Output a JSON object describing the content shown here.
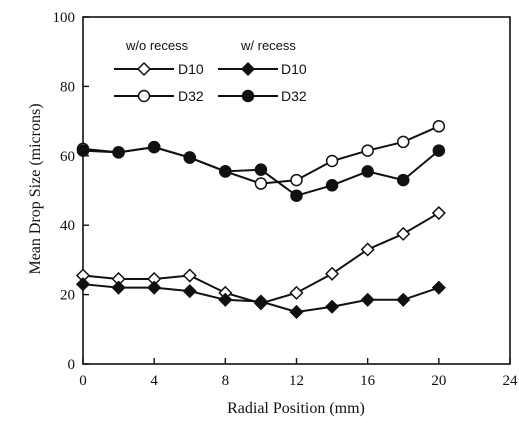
{
  "chart_data": {
    "type": "line",
    "xlabel": "Radial Position (mm)",
    "ylabel_main": "Mean Drop Size ",
    "ylabel_italic": "(microns)",
    "xlim": [
      0,
      24
    ],
    "ylim": [
      0,
      100
    ],
    "xticks": [
      0,
      4,
      8,
      12,
      16,
      20,
      24
    ],
    "yticks": [
      0,
      20,
      40,
      60,
      80,
      100
    ],
    "grid": false,
    "legend": {
      "position": "top-left",
      "group_headers": [
        "w/o recess",
        "w/ recess"
      ]
    },
    "series": [
      {
        "name": "D10",
        "group": "w/o recess",
        "marker": "diamond-open",
        "x": [
          0,
          2,
          4,
          6,
          8,
          10,
          12,
          14,
          16,
          18,
          20
        ],
        "y": [
          25.5,
          24.5,
          24.5,
          25.5,
          20.5,
          17.5,
          20.5,
          26,
          33,
          37.5,
          43.5
        ]
      },
      {
        "name": "D32",
        "group": "w/o recess",
        "marker": "circle-open",
        "x": [
          0,
          2,
          4,
          6,
          8,
          10,
          12,
          14,
          16,
          18,
          20
        ],
        "y": [
          62,
          61,
          62.5,
          59.5,
          55.5,
          52,
          53,
          58.5,
          61.5,
          64,
          68.5
        ]
      },
      {
        "name": "D10",
        "group": "w/ recess",
        "marker": "diamond-filled",
        "x": [
          0,
          2,
          4,
          6,
          8,
          10,
          12,
          14,
          16,
          18,
          20
        ],
        "y": [
          23,
          22,
          22,
          21,
          18.5,
          18,
          15,
          16.5,
          18.5,
          18.5,
          22
        ]
      },
      {
        "name": "D32",
        "group": "w/ recess",
        "marker": "circle-filled",
        "x": [
          0,
          2,
          4,
          6,
          8,
          10,
          12,
          14,
          16,
          18,
          20
        ],
        "y": [
          61.5,
          61,
          62.5,
          59.5,
          55.5,
          56,
          48.5,
          51.5,
          55.5,
          53,
          61.5
        ]
      }
    ]
  }
}
